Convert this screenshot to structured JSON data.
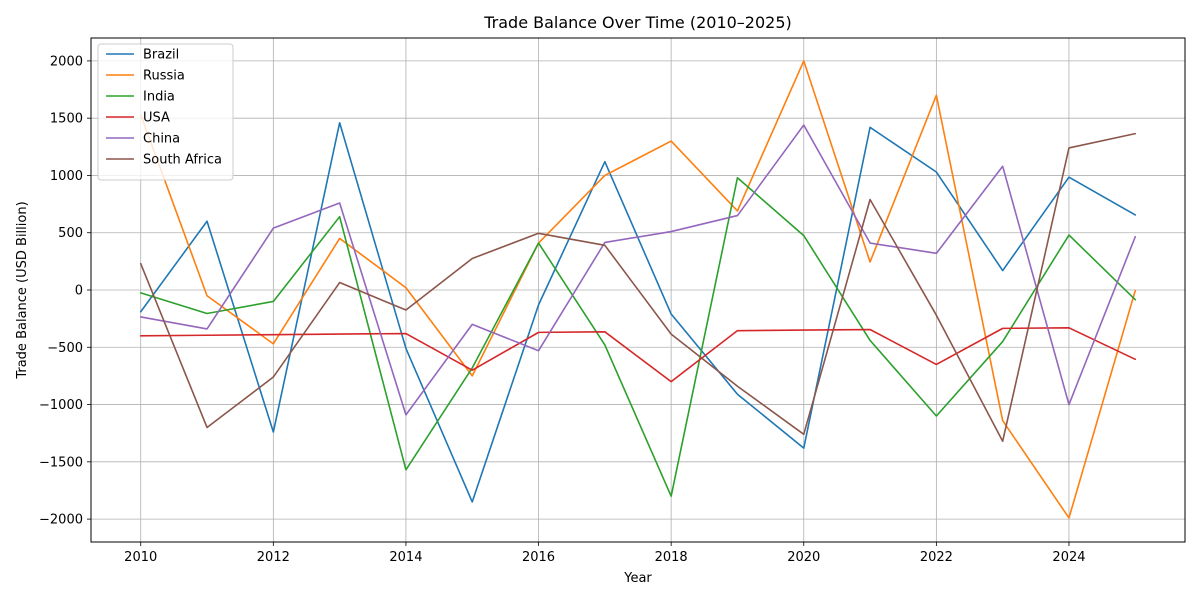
{
  "chart_data": {
    "type": "line",
    "title": "Trade Balance Over Time (2010–2025)",
    "xlabel": "Year",
    "ylabel": "Trade Balance (USD Billion)",
    "x": [
      2010,
      2011,
      2012,
      2013,
      2014,
      2015,
      2016,
      2017,
      2018,
      2019,
      2020,
      2021,
      2022,
      2023,
      2024,
      2025
    ],
    "xlim": [
      2009.25,
      2025.75
    ],
    "ylim": [
      -2200,
      2200
    ],
    "xticks": [
      2010,
      2012,
      2014,
      2016,
      2018,
      2020,
      2022,
      2024
    ],
    "yticks": [
      -2000,
      -1500,
      -1000,
      -500,
      0,
      500,
      1000,
      1500,
      2000
    ],
    "xtick_labels": [
      "2010",
      "2012",
      "2014",
      "2016",
      "2018",
      "2020",
      "2022",
      "2024"
    ],
    "ytick_labels": [
      "−2000",
      "−1500",
      "−1000",
      "−500",
      "0",
      "500",
      "1000",
      "1500",
      "2000"
    ],
    "grid": true,
    "legend_position": "top-left",
    "series": [
      {
        "name": "Brazil",
        "color": "#1f77b4",
        "values": [
          -190,
          600,
          -1240,
          1460,
          -510,
          -1850,
          -130,
          1120,
          -210,
          -910,
          -1380,
          1420,
          1030,
          170,
          985,
          655
        ]
      },
      {
        "name": "Russia",
        "color": "#ff7f0e",
        "values": [
          1530,
          -50,
          -470,
          450,
          20,
          -750,
          410,
          1000,
          1300,
          690,
          2000,
          245,
          1700,
          -1140,
          -1990,
          -5
        ]
      },
      {
        "name": "India",
        "color": "#2ca02c",
        "values": [
          -25,
          -205,
          -100,
          640,
          -1570,
          -680,
          410,
          -480,
          -1800,
          980,
          475,
          -440,
          -1100,
          -450,
          480,
          -85
        ]
      },
      {
        "name": "USA",
        "color": "#d62728",
        "values": [
          -400,
          -395,
          -390,
          -385,
          -380,
          -700,
          -370,
          -365,
          -800,
          -355,
          -350,
          -345,
          -650,
          -335,
          -330,
          -605
        ]
      },
      {
        "name": "China",
        "color": "#9467bd",
        "values": [
          -235,
          -340,
          540,
          760,
          -1090,
          -300,
          -530,
          415,
          510,
          650,
          1440,
          410,
          320,
          1080,
          -1000,
          465
        ]
      },
      {
        "name": "South Africa",
        "color": "#8c564b",
        "values": [
          230,
          -1200,
          -760,
          65,
          -175,
          275,
          495,
          390,
          -385,
          -840,
          -1260,
          790,
          -220,
          -1320,
          1240,
          1365
        ]
      }
    ]
  }
}
